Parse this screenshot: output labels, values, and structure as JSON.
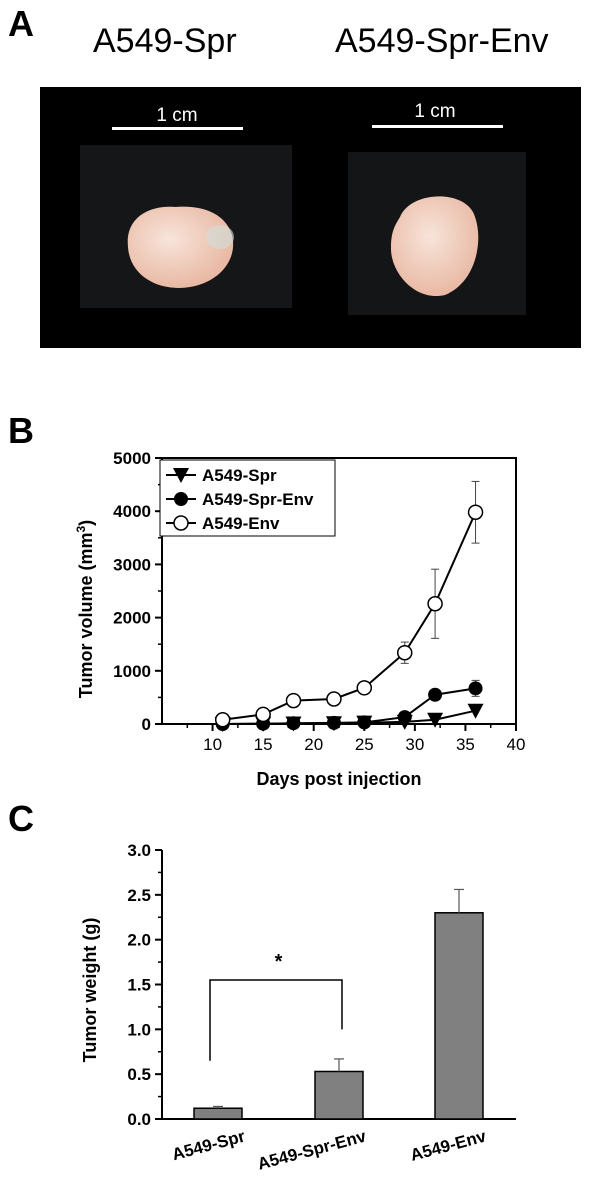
{
  "panels": {
    "a_label": "A",
    "b_label": "B",
    "c_label": "C"
  },
  "photo_panel": {
    "left_title": "A549-Spr",
    "right_title": "A549-Spr-Env",
    "left_scale_label": "1 cm",
    "right_scale_label": "1 cm"
  },
  "colors": {
    "tumor": "#e9b9a4",
    "tumor_highlight": "#f8e4da",
    "photo_background": "#000000",
    "bar_fill": "#808080"
  },
  "chart_data": [
    {
      "type": "line",
      "xlabel": "Days post injection",
      "ylabel": "Tumor volume (mm",
      "ylabel_superscript": "3",
      "ylabel_suffix": ")",
      "xlim": [
        5,
        40
      ],
      "ylim": [
        0,
        5000
      ],
      "xticks": [
        10,
        15,
        20,
        25,
        30,
        35,
        40
      ],
      "yticks": [
        0,
        1000,
        2000,
        3000,
        4000,
        5000
      ],
      "legend_position": "top-left",
      "series": [
        {
          "name": "A549-Spr",
          "marker": "filled-triangle-down",
          "x": [
            11,
            15,
            18,
            22,
            25,
            29,
            32,
            36
          ],
          "y": [
            0,
            5,
            10,
            15,
            25,
            40,
            80,
            250
          ],
          "err": [
            0,
            0,
            0,
            0,
            0,
            0,
            0,
            0
          ]
        },
        {
          "name": "A549-Spr-Env",
          "marker": "filled-circle",
          "x": [
            11,
            15,
            18,
            22,
            25,
            29,
            32,
            36
          ],
          "y": [
            0,
            5,
            15,
            20,
            30,
            130,
            550,
            670
          ],
          "err": [
            0,
            0,
            0,
            0,
            0,
            0,
            60,
            150
          ]
        },
        {
          "name": "A549-Env",
          "marker": "open-circle",
          "x": [
            11,
            15,
            18,
            22,
            25,
            29,
            32,
            36
          ],
          "y": [
            80,
            180,
            440,
            470,
            680,
            1340,
            2260,
            3980
          ],
          "err": [
            40,
            80,
            60,
            60,
            100,
            200,
            650,
            580
          ]
        }
      ]
    },
    {
      "type": "bar",
      "categories": [
        "A549-Spr",
        "A549-Spr-Env",
        "A549-Env"
      ],
      "values": [
        0.12,
        0.53,
        2.3
      ],
      "errors": [
        0.02,
        0.14,
        0.26
      ],
      "ylabel": "Tumor weight (g)",
      "xlabel": "",
      "ylim": [
        0,
        3.0
      ],
      "yticks": [
        "0.0",
        "0.5",
        "1.0",
        "1.5",
        "2.0",
        "2.5",
        "3.0"
      ],
      "annotation": "*"
    }
  ]
}
